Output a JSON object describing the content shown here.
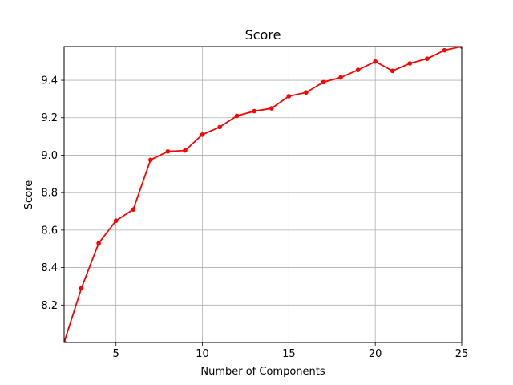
{
  "chart_data": {
    "type": "line",
    "title": "Score",
    "xlabel": "Number of Components",
    "ylabel": "Score",
    "xlim": [
      2,
      25
    ],
    "ylim": [
      8.0,
      9.58
    ],
    "grid": true,
    "x_ticks": [
      5,
      10,
      15,
      20,
      25
    ],
    "y_ticks": [
      8.2,
      8.4,
      8.6,
      8.8,
      9.0,
      9.2,
      9.4
    ],
    "x_tick_labels": [
      "5",
      "10",
      "15",
      "20",
      "25"
    ],
    "y_tick_labels": [
      "8.2",
      "8.4",
      "8.6",
      "8.8",
      "9.0",
      "9.2",
      "9.4"
    ],
    "series": [
      {
        "color": "#ff0000",
        "marker": "circle",
        "x": [
          2,
          3,
          4,
          5,
          6,
          7,
          8,
          9,
          10,
          11,
          12,
          13,
          14,
          15,
          16,
          17,
          18,
          19,
          20,
          21,
          22,
          23,
          24,
          25
        ],
        "values": [
          8.0,
          8.29,
          8.53,
          8.65,
          8.71,
          8.975,
          9.02,
          9.025,
          9.11,
          9.15,
          9.21,
          9.235,
          9.25,
          9.315,
          9.335,
          9.39,
          9.415,
          9.455,
          9.5,
          9.45,
          9.49,
          9.515,
          9.56,
          9.58
        ]
      }
    ]
  }
}
